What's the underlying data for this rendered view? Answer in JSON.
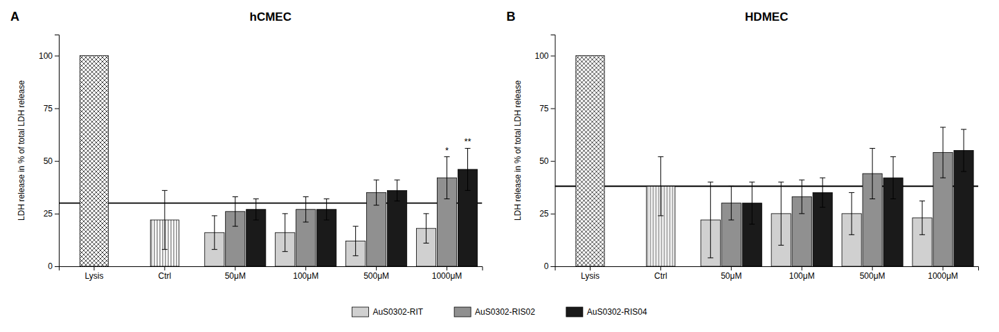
{
  "chart_data": [
    {
      "type": "bar",
      "title": "hCMEC",
      "panel_label": "A",
      "ylabel": "LDH release in % of total LDH release",
      "categories": [
        "Lysis",
        "Ctrl",
        "50μM",
        "100μM",
        "500μM",
        "1000μM"
      ],
      "values": [
        100,
        22,
        null,
        null,
        null,
        null
      ],
      "errors": [
        null,
        14,
        null,
        null,
        null,
        null
      ],
      "series": [
        {
          "name": "AuS0302-RIT",
          "color": "#d0d0d0",
          "values": [
            null,
            null,
            16,
            16,
            12,
            18
          ],
          "errors": [
            null,
            null,
            8,
            9,
            7,
            7
          ]
        },
        {
          "name": "AuS0302-RIS02",
          "color": "#909090",
          "values": [
            null,
            null,
            26,
            27,
            35,
            42
          ],
          "errors": [
            null,
            null,
            7,
            6,
            6,
            10
          ]
        },
        {
          "name": "AuS0302-RIS04",
          "color": "#1a1a1a",
          "values": [
            null,
            null,
            27,
            27,
            36,
            46
          ],
          "errors": [
            null,
            null,
            5,
            5,
            5,
            10
          ]
        }
      ],
      "hline": 30,
      "annotations": [
        {
          "text": "*",
          "category": "1000μM",
          "series": "AuS0302-RIS02"
        },
        {
          "text": "**",
          "category": "1000μM",
          "series": "AuS0302-RIS04"
        }
      ],
      "ylim": [
        0,
        110
      ],
      "yticks": [
        0,
        25,
        50,
        75,
        100
      ],
      "grid": false,
      "legend": "bottom"
    },
    {
      "type": "bar",
      "title": "HDMEC",
      "panel_label": "B",
      "ylabel": "LDH release in % of total LDH release",
      "categories": [
        "Lysis",
        "Ctrl",
        "50μM",
        "100μM",
        "500μM",
        "1000μM"
      ],
      "values": [
        100,
        38,
        null,
        null,
        null,
        null
      ],
      "errors": [
        null,
        14,
        null,
        null,
        null,
        null
      ],
      "series": [
        {
          "name": "AuS0302-RIT",
          "color": "#d0d0d0",
          "values": [
            null,
            null,
            22,
            25,
            25,
            23
          ],
          "errors": [
            null,
            null,
            18,
            15,
            10,
            8
          ]
        },
        {
          "name": "AuS0302-RIS02",
          "color": "#909090",
          "values": [
            null,
            null,
            30,
            33,
            44,
            54
          ],
          "errors": [
            null,
            null,
            8,
            8,
            12,
            12
          ]
        },
        {
          "name": "AuS0302-RIS04",
          "color": "#1a1a1a",
          "values": [
            null,
            null,
            30,
            35,
            42,
            55
          ],
          "errors": [
            null,
            null,
            10,
            7,
            10,
            10
          ]
        }
      ],
      "hline": 38,
      "ylim": [
        0,
        110
      ],
      "yticks": [
        0,
        25,
        50,
        75,
        100
      ],
      "grid": false
    }
  ]
}
